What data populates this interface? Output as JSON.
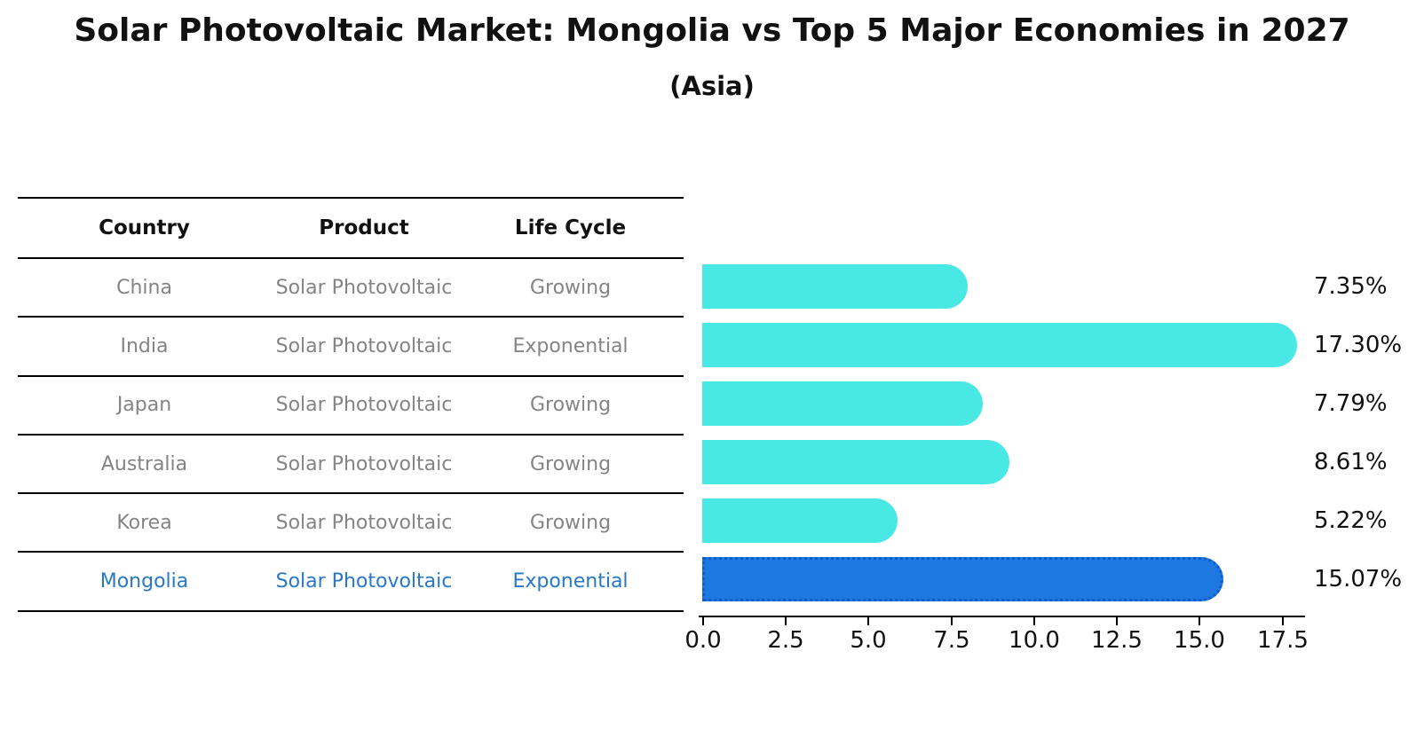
{
  "header": {
    "title": "Solar Photovoltaic Market: Mongolia vs Top 5 Major Economies in 2027",
    "subtitle": "(Asia)"
  },
  "table": {
    "columns": {
      "country": "Country",
      "product": "Product",
      "life_cycle": "Life Cycle"
    },
    "rows": [
      {
        "country": "China",
        "product": "Solar Photovoltaic",
        "life_cycle": "Growing"
      },
      {
        "country": "India",
        "product": "Solar Photovoltaic",
        "life_cycle": "Exponential"
      },
      {
        "country": "Japan",
        "product": "Solar Photovoltaic",
        "life_cycle": "Growing"
      },
      {
        "country": "Australia",
        "product": "Solar Photovoltaic",
        "life_cycle": "Growing"
      },
      {
        "country": "Korea",
        "product": "Solar Photovoltaic",
        "life_cycle": "Growing"
      },
      {
        "country": "Mongolia",
        "product": "Solar Photovoltaic",
        "life_cycle": "Exponential"
      }
    ]
  },
  "chart_data": {
    "type": "bar",
    "orientation": "horizontal",
    "title": "Solar Photovoltaic Market: Mongolia vs Top 5 Major Economies in 2027",
    "subtitle": "(Asia)",
    "categories": [
      "China",
      "India",
      "Japan",
      "Australia",
      "Korea",
      "Mongolia"
    ],
    "values": [
      7.35,
      17.3,
      7.79,
      8.61,
      5.22,
      15.07
    ],
    "value_labels": [
      "7.35%",
      "17.30%",
      "7.79%",
      "8.61%",
      "5.22%",
      "15.07%"
    ],
    "x_ticks": [
      "0.0",
      "2.5",
      "5.0",
      "7.5",
      "10.0",
      "12.5",
      "15.0",
      "17.5"
    ],
    "xlim": [
      0,
      18.2
    ],
    "xlabel": "",
    "ylabel": "",
    "grid": false,
    "legend": "none",
    "bar_color": "#4ae8e4",
    "highlight_color": "#1e78e2",
    "highlight_border_color": "#0d5cc9",
    "highlight_index": 5,
    "highlight_text_color": "#2878c8"
  }
}
